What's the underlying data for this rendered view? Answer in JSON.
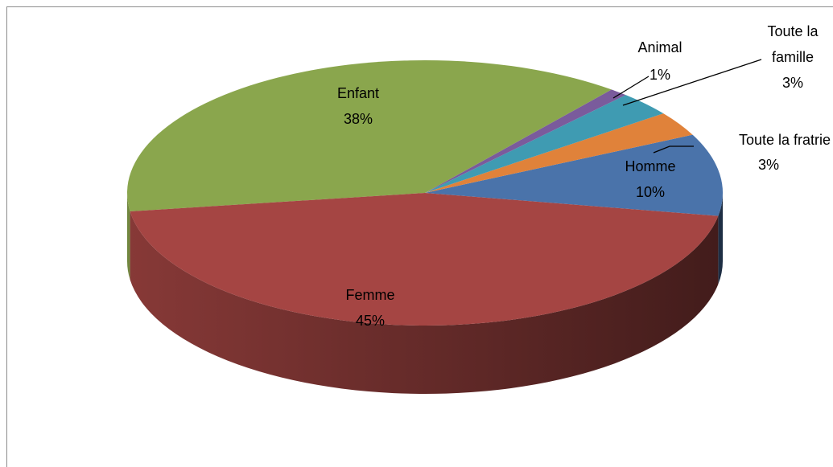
{
  "chart_data": {
    "type": "pie3d",
    "categories": [
      "Homme",
      "Toute la fratrie",
      "Toute la famille",
      "Animal",
      "Enfant",
      "Femme"
    ],
    "values": [
      10,
      3,
      3,
      1,
      38,
      45
    ],
    "value_labels": [
      "10%",
      "3%",
      "3%",
      "1%",
      "38%",
      "45%"
    ],
    "colors": [
      "#4a73aa",
      "#e0823a",
      "#3f9bb2",
      "#7a5b9c",
      "#8aa64d",
      "#a54543"
    ]
  }
}
